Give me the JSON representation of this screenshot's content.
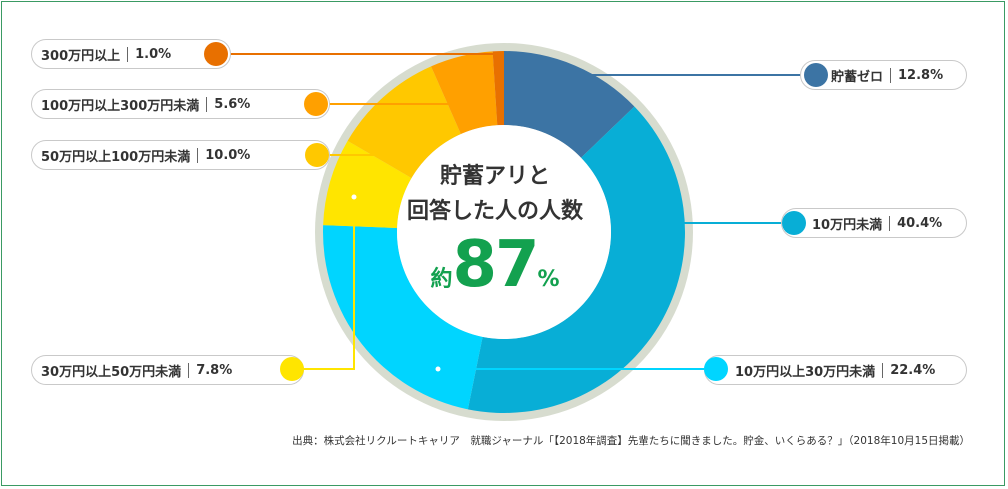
{
  "chart_data": {
    "type": "pie",
    "style": "donut",
    "center_text": {
      "line1": "貯蓄アリと",
      "line2": "回答した人の人数",
      "prefix": "約",
      "value": "87",
      "unit": "%"
    },
    "slices": [
      {
        "label": "貯蓄ゼロ",
        "value": 12.8,
        "value_label": "12.8%",
        "color": "#3c74a4"
      },
      {
        "label": "10万円未満",
        "value": 40.4,
        "value_label": "40.4%",
        "color": "#08aed6"
      },
      {
        "label": "10万円以上30万円未満",
        "value": 22.4,
        "value_label": "22.4%",
        "color": "#00d5ff"
      },
      {
        "label": "30万円以上50万円未満",
        "value": 7.8,
        "value_label": "7.8%",
        "color": "#ffe500"
      },
      {
        "label": "50万円以上100万円未満",
        "value": 10.0,
        "value_label": "10.0%",
        "color": "#ffc800"
      },
      {
        "label": "100万円以上300万円未満",
        "value": 5.6,
        "value_label": "5.6%",
        "color": "#ffa000"
      },
      {
        "label": "300万円以上",
        "value": 1.0,
        "value_label": "1.0%",
        "color": "#e87000"
      }
    ]
  },
  "colors": {
    "frame": "#3a9a63",
    "ring": "#d7dccf",
    "accent_green": "#13a14f"
  },
  "source": "出典：株式会社リクルートキャリア　就職ジャーナル「【2018年調査】先輩たちに聞きました。貯金、いくらある？」（2018年10月15日掲載）"
}
